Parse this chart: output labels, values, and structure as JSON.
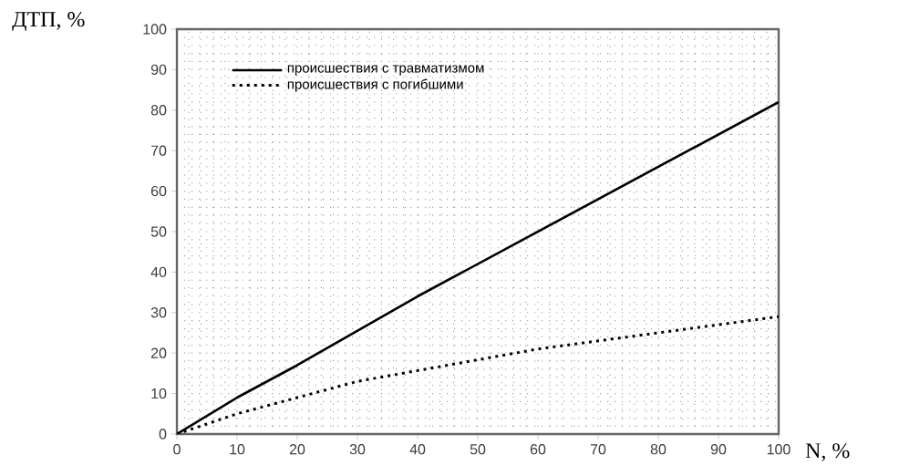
{
  "chart_data": {
    "type": "line",
    "xlabel": "N, %",
    "ylabel": "ДТП, %",
    "xlim": [
      0,
      100
    ],
    "ylim": [
      0,
      100
    ],
    "xticks": [
      0,
      10,
      20,
      30,
      40,
      50,
      60,
      70,
      80,
      90,
      100
    ],
    "yticks": [
      0,
      10,
      20,
      30,
      40,
      50,
      60,
      70,
      80,
      90,
      100
    ],
    "grid": true,
    "legend": "top left",
    "series": [
      {
        "name": "происшествия с травматизмом",
        "color": "#000000",
        "line_style": "solid",
        "x": [
          0,
          10,
          20,
          40,
          60,
          80,
          100
        ],
        "values": [
          0,
          9,
          17,
          34,
          50,
          66,
          82
        ]
      },
      {
        "name": "происшествия с погибшими",
        "color": "#000000",
        "line_style": "dotted",
        "x": [
          0,
          10,
          20,
          30,
          45,
          60,
          80,
          100
        ],
        "values": [
          0,
          5,
          9,
          13,
          17,
          21,
          25,
          29
        ]
      }
    ]
  }
}
